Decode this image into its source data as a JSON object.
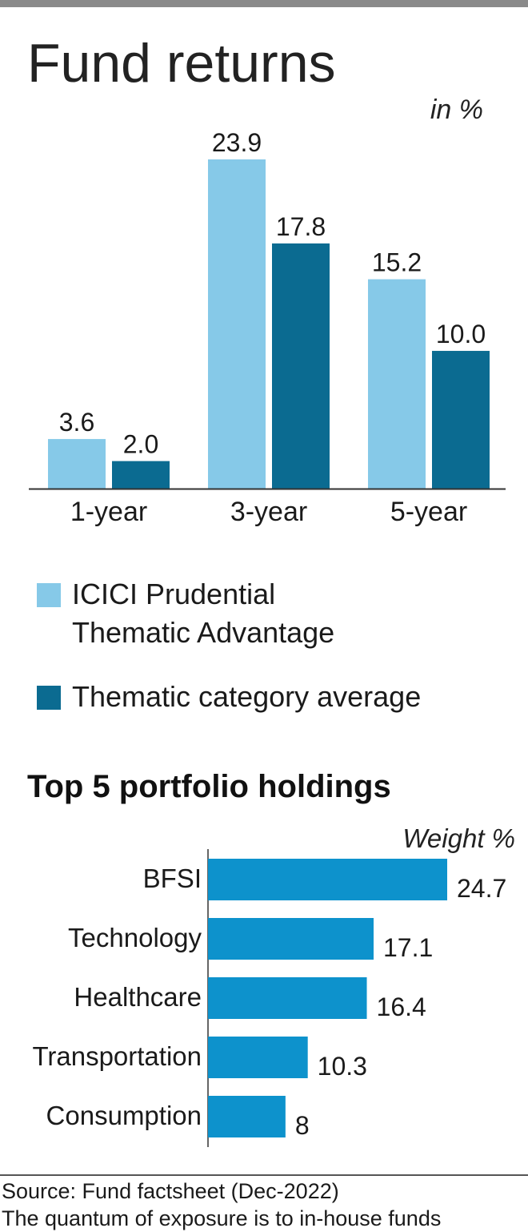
{
  "title": "Fund returns",
  "unit_label": "in %",
  "colors": {
    "fund": "#86c9e8",
    "category": "#0b6b91",
    "holding": "#0d92cc"
  },
  "chart_data": [
    {
      "type": "bar",
      "categories": [
        "1-year",
        "3-year",
        "5-year"
      ],
      "series": [
        {
          "name": "ICICI Prudential Thematic Advantage",
          "values": [
            3.6,
            23.9,
            15.2
          ]
        },
        {
          "name": "Thematic category average",
          "values": [
            2.0,
            17.8,
            10.0
          ]
        }
      ],
      "ylim": [
        0,
        24
      ],
      "unit": "in %"
    },
    {
      "type": "bar",
      "orientation": "horizontal",
      "title": "Top 5 portfolio holdings",
      "unit": "Weight %",
      "categories": [
        "BFSI",
        "Technology",
        "Healthcare",
        "Transportation",
        "Consumption"
      ],
      "values": [
        24.7,
        17.1,
        16.4,
        10.3,
        8
      ],
      "value_labels": [
        "24.7",
        "17.1",
        "16.4",
        "10.3",
        "8"
      ],
      "xlim": [
        0,
        24.7
      ]
    }
  ],
  "legend": {
    "fund_line1": "ICICI Prudential",
    "fund_line2": "Thematic Advantage",
    "category": "Thematic category average"
  },
  "holdings": {
    "title": "Top 5 portfolio holdings",
    "unit": "Weight %"
  },
  "source": {
    "line1": "Source: Fund factsheet (Dec-2022)",
    "line2": "The quantum of exposure is to in-house funds"
  }
}
